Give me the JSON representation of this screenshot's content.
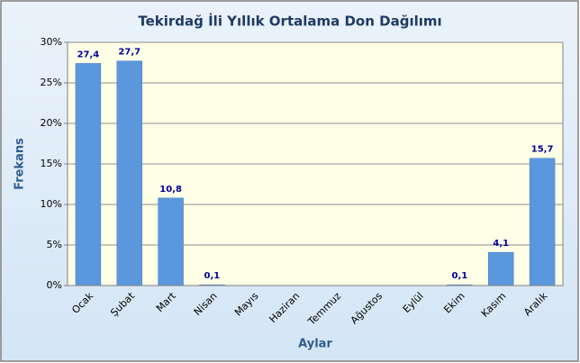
{
  "chart_data": {
    "type": "bar",
    "title": "Tekirdağ İli Yıllık Ortalama Don Dağılımı",
    "x_label": "Aylar",
    "y_label": "Frekans",
    "categories": [
      "Ocak",
      "Şubat",
      "Mart",
      "Nisan",
      "Mayıs",
      "Haziran",
      "Temmuz",
      "Ağustos",
      "Eylül",
      "Ekim",
      "Kasım",
      "Aralık"
    ],
    "values": [
      27.4,
      27.7,
      10.8,
      0.1,
      0,
      0,
      0,
      0,
      0,
      0.1,
      4.1,
      15.7
    ],
    "value_labels": [
      "27,4",
      "27,7",
      "10,8",
      "0,1",
      null,
      null,
      null,
      null,
      null,
      "0,1",
      "4,1",
      "15,7"
    ],
    "color": "#5b97dc",
    "ylim": [
      0,
      30
    ],
    "yticks": [
      {
        "value": 0,
        "label": "0%"
      },
      {
        "value": 5,
        "label": "5%"
      },
      {
        "value": 10,
        "label": "10%"
      },
      {
        "value": 15,
        "label": "15%"
      },
      {
        "value": 20,
        "label": "20%"
      },
      {
        "value": 25,
        "label": "25%"
      },
      {
        "value": 30,
        "label": "30%"
      }
    ],
    "grid": true
  }
}
